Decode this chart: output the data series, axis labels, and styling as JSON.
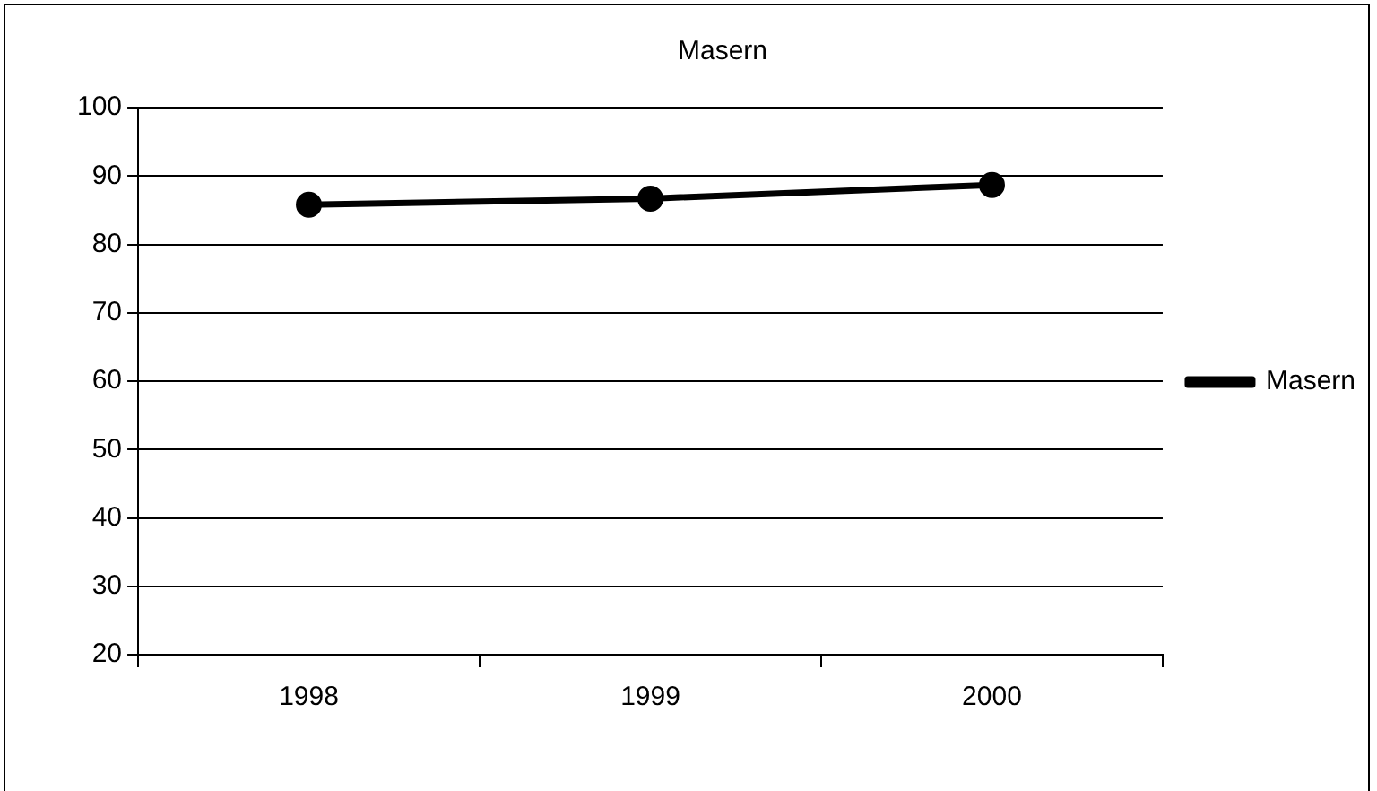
{
  "chart_data": {
    "type": "line",
    "title": "Masern",
    "categories": [
      "1998",
      "1999",
      "2000"
    ],
    "series": [
      {
        "name": "Masern",
        "color": "#000000",
        "values": [
          85.8,
          86.7,
          88.7
        ]
      }
    ],
    "ylim": [
      20,
      100
    ],
    "yticks": [
      20,
      30,
      40,
      50,
      60,
      70,
      80,
      90,
      100
    ],
    "grid": "y",
    "legend": "right",
    "marker": "circle",
    "line_style": "solid"
  }
}
